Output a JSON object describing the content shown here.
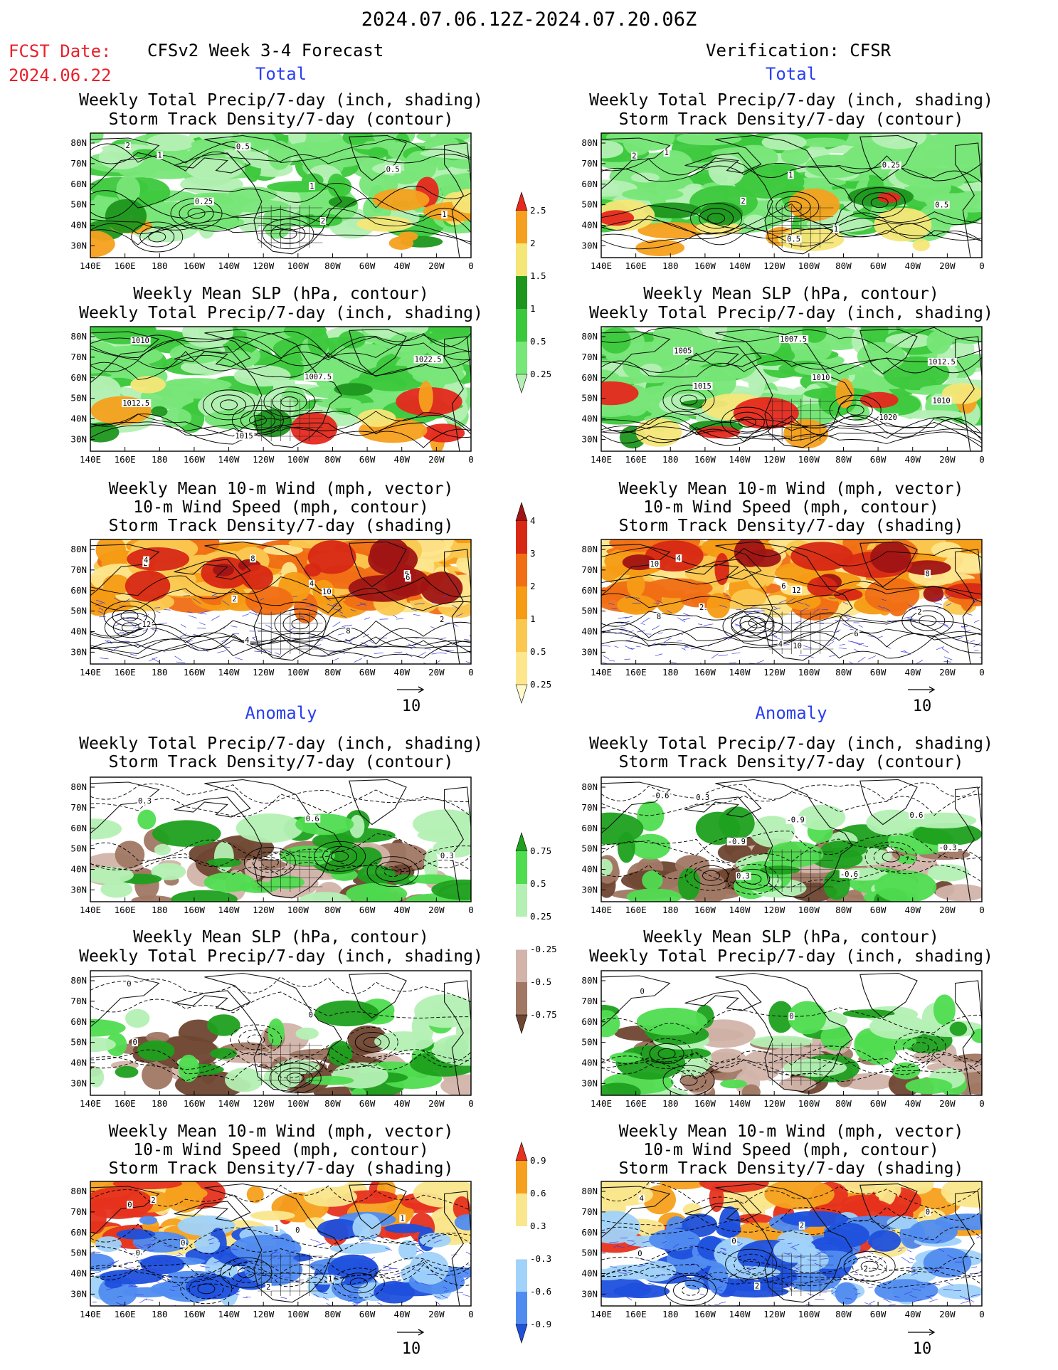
{
  "header": {
    "date_range": "2024.07.06.12Z-2024.07.20.06Z",
    "fcst_label": "FCST Date:",
    "fcst_date": "2024.06.22",
    "left_title": "CFSv2 Week 3-4 Forecast",
    "right_title": "Verification: CFSR"
  },
  "sections": {
    "total": "Total",
    "anomaly": "Anomaly"
  },
  "panel_titles": {
    "precip_storm_1": "Weekly Total Precip/7-day (inch, shading)",
    "precip_storm_2": "Storm Track Density/7-day (contour)",
    "slp_1": "Weekly Mean SLP (hPa, contour)",
    "slp_2": "Weekly Total Precip/7-day (inch, shading)",
    "wind_1": "Weekly Mean 10-m Wind (mph, vector)",
    "wind_2": "10-m Wind Speed (mph, contour)",
    "wind_3": "Storm Track Density/7-day (shading)"
  },
  "axes": {
    "lat_labels": [
      "80N",
      "70N",
      "60N",
      "50N",
      "40N",
      "30N"
    ],
    "lon_labels": [
      "140E",
      "160E",
      "180",
      "160W",
      "140W",
      "120W",
      "100W",
      "80W",
      "60W",
      "40W",
      "20W",
      "0"
    ]
  },
  "vector_ref": "10",
  "colorbars": {
    "precip_total": {
      "labels": [
        "0.25",
        "0.5",
        "1",
        "1.5",
        "2",
        "2.5"
      ],
      "colors": [
        "#b4f0b4",
        "#78e678",
        "#3cc83c",
        "#1e961e",
        "#f5e678",
        "#f5a01e",
        "#e6281e"
      ]
    },
    "storm_total": {
      "labels": [
        "0.25",
        "0.5",
        "1",
        "2",
        "3",
        "4"
      ],
      "colors": [
        "#fffac8",
        "#fde68c",
        "#fac850",
        "#f59b14",
        "#f06e14",
        "#d72814",
        "#a01414"
      ]
    },
    "precip_anom": {
      "labels": [
        "-0.75",
        "-0.5",
        "-0.25",
        "0.25",
        "0.5",
        "0.75"
      ],
      "colors": [
        "#6e4630",
        "#a07864",
        "#d2b4aa",
        "#ffffff",
        "#b4f0b4",
        "#50dc50",
        "#1ea01e"
      ]
    },
    "storm_anom": {
      "labels": [
        "-0.9",
        "-0.6",
        "-0.3",
        "0.3",
        "0.6",
        "0.9"
      ],
      "colors": [
        "#1e50dc",
        "#508cf0",
        "#a0d2fa",
        "#ffffff",
        "#fae68c",
        "#f5a01e",
        "#e6321e"
      ]
    }
  },
  "panels": {
    "fc_total_precip": {
      "labels": [
        "2",
        "1",
        "1",
        "0.5",
        "0.5",
        "0.25",
        "2",
        "1"
      ]
    },
    "fc_total_slp": {
      "labels": [
        "1010",
        "1007.5",
        "1012.5",
        "1015",
        "1022.5"
      ]
    },
    "fc_total_wind": {
      "labels": [
        "2",
        "4",
        "2",
        "4",
        "6",
        "2",
        "8",
        "4",
        "10",
        "12",
        "8",
        "6"
      ]
    },
    "vr_total_precip": {
      "labels": [
        "2",
        "1",
        "0.5",
        "0.5",
        "0.25",
        "2",
        "1",
        "1"
      ]
    },
    "vr_total_slp": {
      "labels": [
        "1005",
        "1010",
        "1010",
        "1007.5",
        "1012.5",
        "1015",
        "1020"
      ]
    },
    "vr_total_wind": {
      "labels": [
        "4",
        "6",
        "2",
        "4",
        "8",
        "2",
        "6",
        "10",
        "12",
        "8",
        "10"
      ]
    },
    "fc_anom_precip": {
      "labels": [
        "0.3",
        "0.6",
        "0.3"
      ]
    },
    "vr_anom_precip": {
      "labels": [
        "-0.6",
        "-0.9",
        "-0.3",
        "0.3",
        "0.6",
        "-0.9",
        "-0.6",
        "0.3"
      ]
    },
    "fc_anom_slp": {
      "labels": [
        "0",
        "0",
        "0"
      ]
    },
    "vr_anom_slp": {
      "labels": [
        "0",
        "0"
      ]
    },
    "fc_anom_wind": {
      "labels": [
        "0",
        "1",
        "0",
        "2",
        "1",
        "0",
        "1",
        "2",
        "0"
      ]
    },
    "vr_anom_wind": {
      "labels": [
        "4",
        "2",
        "0",
        "2",
        "0",
        "0",
        "2"
      ]
    }
  }
}
